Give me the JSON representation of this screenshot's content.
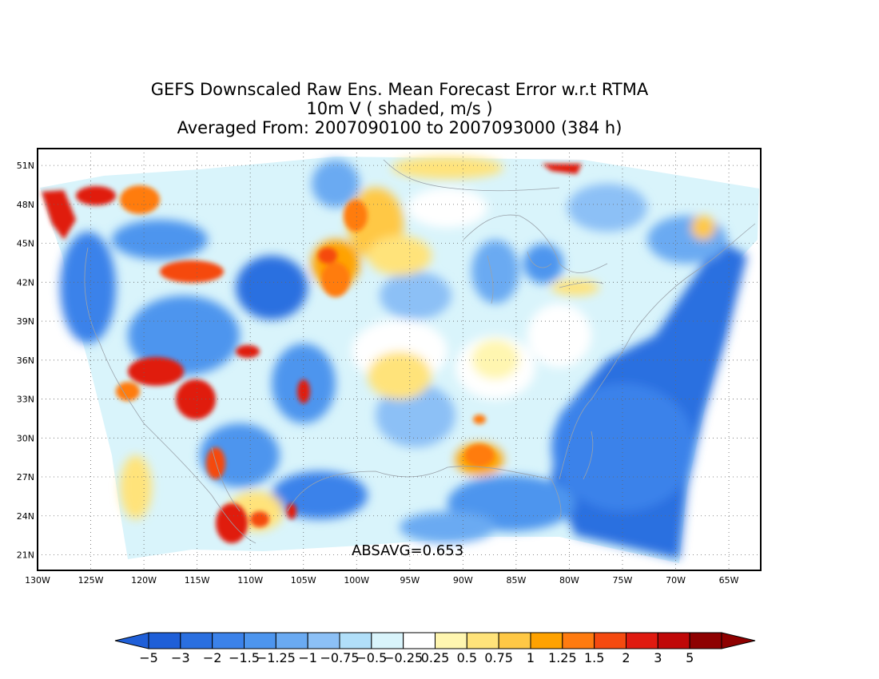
{
  "title": {
    "line1": "GEFS Downscaled Raw Ens. Mean Forecast Error w.r.t RTMA",
    "line2": "10m V ( shaded, m/s )",
    "line3": "Averaged From: 2007090100 to 2007093000 (384 h)"
  },
  "map": {
    "annotation": "ABSAVG=0.653",
    "lon_labels": [
      "130W",
      "125W",
      "120W",
      "115W",
      "110W",
      "105W",
      "100W",
      "95W",
      "90W",
      "85W",
      "80W",
      "75W",
      "70W",
      "65W"
    ],
    "lat_labels": [
      "51N",
      "48N",
      "45N",
      "42N",
      "39N",
      "36N",
      "33N",
      "30N",
      "27N",
      "24N",
      "21N"
    ],
    "projection": "lat-lon",
    "grid": "dotted",
    "lon_range": [
      -130,
      -62
    ],
    "lat_range": [
      19.8,
      52.3
    ]
  },
  "colorbar": {
    "tick_labels": [
      "−5",
      "−3",
      "−2",
      "−1.5",
      "−1.25",
      "−1",
      "−0.75",
      "−0.5",
      "−0.25",
      "0.25",
      "0.5",
      "0.75",
      "1",
      "1.25",
      "1.5",
      "2",
      "3",
      "5"
    ],
    "colors": [
      "#1f5fd8",
      "#2a6fe0",
      "#3b82ea",
      "#4d95ee",
      "#6aaaf2",
      "#8cc0f6",
      "#b1dff9",
      "#d9f4fb",
      "#ffffff",
      "#fff6b0",
      "#ffe37a",
      "#ffc845",
      "#ffa200",
      "#ff7b10",
      "#f54a10",
      "#e01a10",
      "#c00808",
      "#8e0000"
    ],
    "extend_low_color": "#1f5fd8",
    "extend_high_color": "#8e0000"
  },
  "colors": {
    "strong_negative": "#2a6fe0",
    "negative": "#6aaaf2",
    "weak_negative": "#b1dff9",
    "weak_positive": "#ffe37a",
    "positive": "#ffa200",
    "strong_positive": "#e01a10"
  }
}
